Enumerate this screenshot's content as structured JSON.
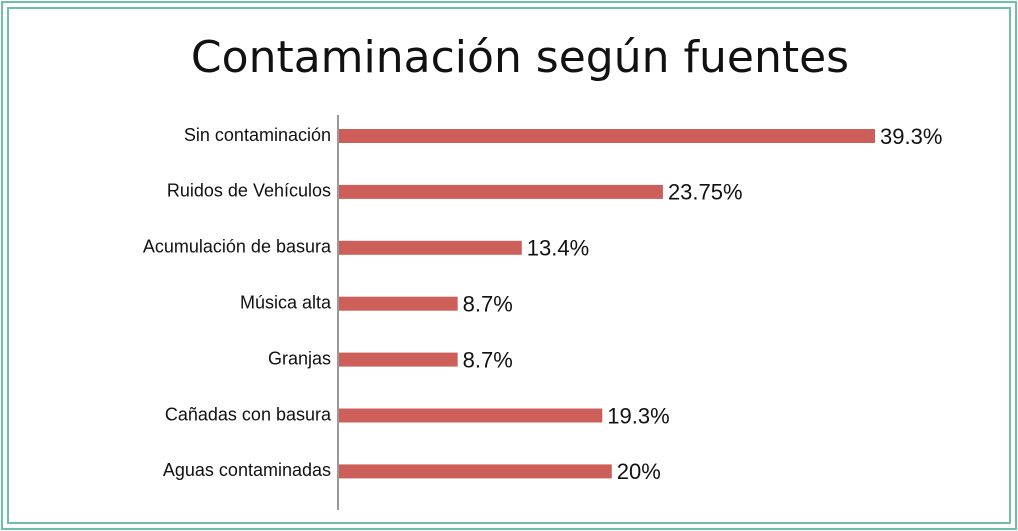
{
  "chart_data": {
    "type": "bar",
    "orientation": "horizontal",
    "title": "Contaminación según fuentes",
    "categories": [
      "Sin contaminación",
      "Ruidos de Vehículos",
      "Acumulación de basura",
      "Música alta",
      "Granjas",
      "Cañadas con basura",
      "Aguas contaminadas"
    ],
    "values": [
      39.3,
      23.75,
      13.4,
      8.7,
      8.7,
      19.3,
      20
    ],
    "value_labels": [
      "39.3%",
      "23.75%",
      "13.4%",
      "8.7%",
      "8.7%",
      "19.3%",
      "20%"
    ],
    "color": "#cd5f5a"
  }
}
